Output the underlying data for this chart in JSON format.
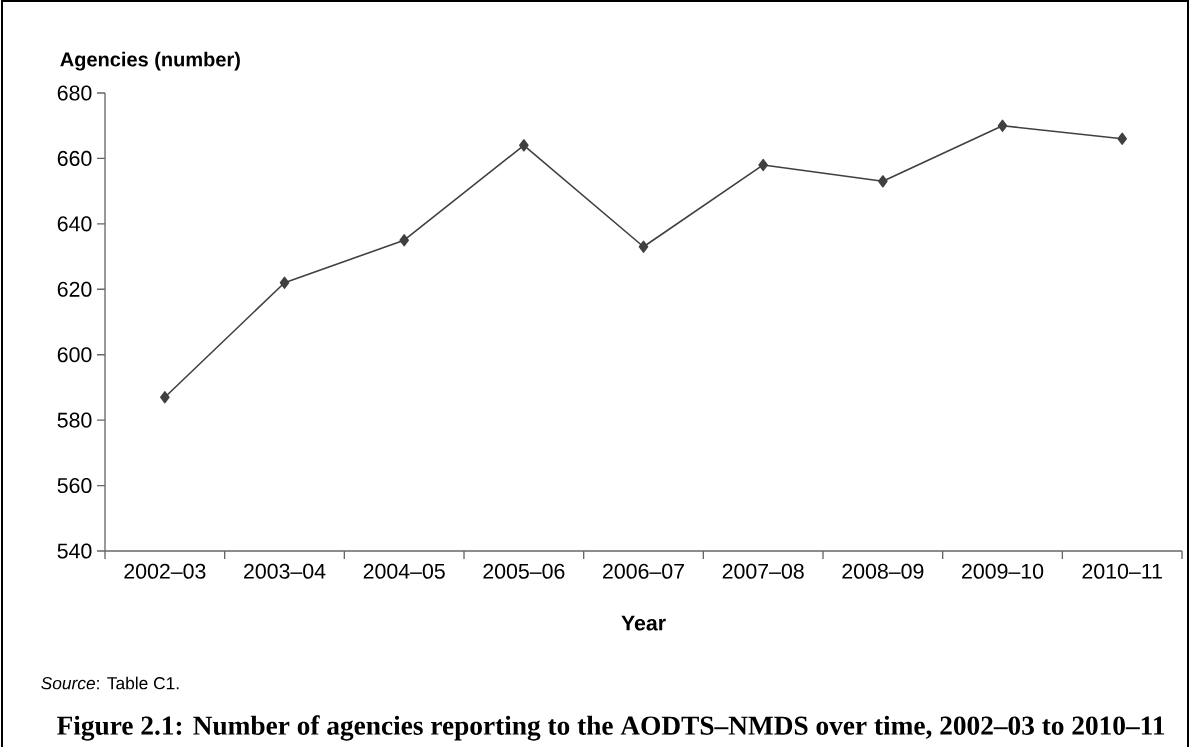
{
  "chart_data": {
    "type": "line",
    "title": "Figure 2.1: Number of agencies reporting to the AODTS–NMDS over time, 2002–03 to 2010–11",
    "xlabel": "Year",
    "ylabel": "Agencies (number)",
    "annotations": [
      "*Source*: Table C1."
    ],
    "categories": [
      "2002–03",
      "2003–04",
      "2004–05",
      "2005–06",
      "2006–07",
      "2007–08",
      "2008–09",
      "2009–10",
      "2010–11"
    ],
    "values": [
      587,
      622,
      635,
      664,
      633,
      658,
      653,
      670,
      666
    ],
    "color": "#404040",
    "marker": "diamond",
    "line_style": "solid",
    "ylim": [
      540,
      680
    ],
    "yticks": [
      540,
      560,
      580,
      600,
      620,
      640,
      660,
      680
    ],
    "grid": false
  }
}
